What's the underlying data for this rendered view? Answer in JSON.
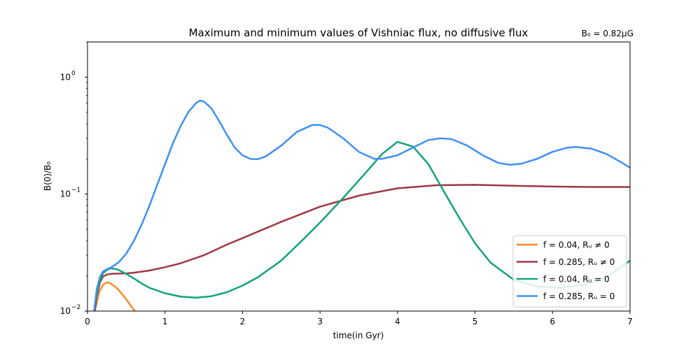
{
  "chart_data": {
    "type": "line",
    "title": "Maximum and minimum values of Vishniac flux, no diffusive flux",
    "annotation": "B₀ = 0.82μG",
    "xlabel": "time(in Gyr)",
    "ylabel": "B(0)/B₀",
    "xlim": [
      0,
      7
    ],
    "ylim": [
      0.01,
      2
    ],
    "yscale": "log",
    "grid": false,
    "legend_position": "lower right",
    "x_ticks": [
      "0",
      "1",
      "2",
      "3",
      "4",
      "5",
      "6",
      "7"
    ],
    "y_ticks": [
      {
        "value": 0.01,
        "base": "10",
        "exp": "−2"
      },
      {
        "value": 0.1,
        "base": "10",
        "exp": "−1"
      },
      {
        "value": 1,
        "base": "10",
        "exp": "0"
      }
    ],
    "series": [
      {
        "name": "f = 0.04, Rᵤ ≠ 0",
        "color": "#f28e2b",
        "points": [
          [
            0.05,
            0.0065
          ],
          [
            0.1,
            0.0105
          ],
          [
            0.15,
            0.0145
          ],
          [
            0.2,
            0.0168
          ],
          [
            0.25,
            0.0176
          ],
          [
            0.3,
            0.0172
          ],
          [
            0.35,
            0.0163
          ],
          [
            0.4,
            0.0152
          ],
          [
            0.45,
            0.0139
          ],
          [
            0.5,
            0.0126
          ],
          [
            0.55,
            0.0113
          ],
          [
            0.6,
            0.0102
          ],
          [
            0.65,
            0.0095
          ]
        ]
      },
      {
        "name": "f = 0.285, Rᵤ ≠ 0",
        "color": "#9e3843",
        "points": [
          [
            0.08,
            0.0085
          ],
          [
            0.12,
            0.0135
          ],
          [
            0.16,
            0.0175
          ],
          [
            0.2,
            0.0197
          ],
          [
            0.25,
            0.0205
          ],
          [
            0.3,
            0.0208
          ],
          [
            0.4,
            0.0209
          ],
          [
            0.5,
            0.021
          ],
          [
            0.6,
            0.0213
          ],
          [
            0.8,
            0.0222
          ],
          [
            1.0,
            0.0237
          ],
          [
            1.2,
            0.0256
          ],
          [
            1.5,
            0.03
          ],
          [
            1.8,
            0.037
          ],
          [
            2.0,
            0.042
          ],
          [
            2.5,
            0.058
          ],
          [
            3.0,
            0.078
          ],
          [
            3.5,
            0.097
          ],
          [
            4.0,
            0.112
          ],
          [
            4.5,
            0.119
          ],
          [
            5.0,
            0.12
          ],
          [
            5.5,
            0.118
          ],
          [
            6.0,
            0.116
          ],
          [
            6.5,
            0.115
          ],
          [
            7.0,
            0.115
          ]
        ]
      },
      {
        "name": "f = 0.04, Rᵤ = 0",
        "color": "#13a37a",
        "points": [
          [
            0.1,
            0.012
          ],
          [
            0.15,
            0.0175
          ],
          [
            0.2,
            0.021
          ],
          [
            0.25,
            0.0225
          ],
          [
            0.3,
            0.0232
          ],
          [
            0.35,
            0.023
          ],
          [
            0.4,
            0.0225
          ],
          [
            0.5,
            0.0208
          ],
          [
            0.6,
            0.019
          ],
          [
            0.7,
            0.0172
          ],
          [
            0.8,
            0.0158
          ],
          [
            1.0,
            0.0142
          ],
          [
            1.2,
            0.0133
          ],
          [
            1.4,
            0.013
          ],
          [
            1.6,
            0.0134
          ],
          [
            1.8,
            0.0145
          ],
          [
            2.0,
            0.0165
          ],
          [
            2.2,
            0.0195
          ],
          [
            2.5,
            0.027
          ],
          [
            2.8,
            0.042
          ],
          [
            3.0,
            0.057
          ],
          [
            3.3,
            0.093
          ],
          [
            3.6,
            0.155
          ],
          [
            3.8,
            0.22
          ],
          [
            4.0,
            0.28
          ],
          [
            4.2,
            0.255
          ],
          [
            4.4,
            0.18
          ],
          [
            4.6,
            0.105
          ],
          [
            4.8,
            0.062
          ],
          [
            5.0,
            0.038
          ],
          [
            5.2,
            0.026
          ],
          [
            5.5,
            0.0185
          ],
          [
            5.8,
            0.0162
          ],
          [
            6.1,
            0.0158
          ],
          [
            6.4,
            0.0168
          ],
          [
            6.7,
            0.0195
          ],
          [
            7.0,
            0.027
          ]
        ]
      },
      {
        "name": "f = 0.285, Rᵤ = 0",
        "color": "#4090f0",
        "points": [
          [
            0.08,
            0.0095
          ],
          [
            0.12,
            0.0155
          ],
          [
            0.16,
            0.0195
          ],
          [
            0.2,
            0.0218
          ],
          [
            0.25,
            0.0228
          ],
          [
            0.3,
            0.0235
          ],
          [
            0.4,
            0.026
          ],
          [
            0.5,
            0.031
          ],
          [
            0.6,
            0.04
          ],
          [
            0.7,
            0.055
          ],
          [
            0.8,
            0.08
          ],
          [
            0.9,
            0.12
          ],
          [
            1.0,
            0.18
          ],
          [
            1.1,
            0.27
          ],
          [
            1.2,
            0.38
          ],
          [
            1.3,
            0.5
          ],
          [
            1.4,
            0.6
          ],
          [
            1.45,
            0.63
          ],
          [
            1.5,
            0.62
          ],
          [
            1.6,
            0.54
          ],
          [
            1.7,
            0.42
          ],
          [
            1.8,
            0.32
          ],
          [
            1.9,
            0.25
          ],
          [
            2.0,
            0.215
          ],
          [
            2.1,
            0.2
          ],
          [
            2.2,
            0.199
          ],
          [
            2.3,
            0.21
          ],
          [
            2.5,
            0.26
          ],
          [
            2.7,
            0.34
          ],
          [
            2.9,
            0.39
          ],
          [
            3.0,
            0.39
          ],
          [
            3.1,
            0.37
          ],
          [
            3.3,
            0.3
          ],
          [
            3.5,
            0.23
          ],
          [
            3.7,
            0.2
          ],
          [
            3.8,
            0.2
          ],
          [
            4.0,
            0.215
          ],
          [
            4.2,
            0.25
          ],
          [
            4.4,
            0.29
          ],
          [
            4.55,
            0.3
          ],
          [
            4.7,
            0.295
          ],
          [
            4.9,
            0.26
          ],
          [
            5.1,
            0.215
          ],
          [
            5.3,
            0.185
          ],
          [
            5.45,
            0.178
          ],
          [
            5.6,
            0.182
          ],
          [
            5.8,
            0.2
          ],
          [
            6.0,
            0.23
          ],
          [
            6.2,
            0.25
          ],
          [
            6.3,
            0.253
          ],
          [
            6.5,
            0.245
          ],
          [
            6.7,
            0.22
          ],
          [
            6.9,
            0.185
          ],
          [
            7.0,
            0.168
          ]
        ]
      }
    ]
  }
}
